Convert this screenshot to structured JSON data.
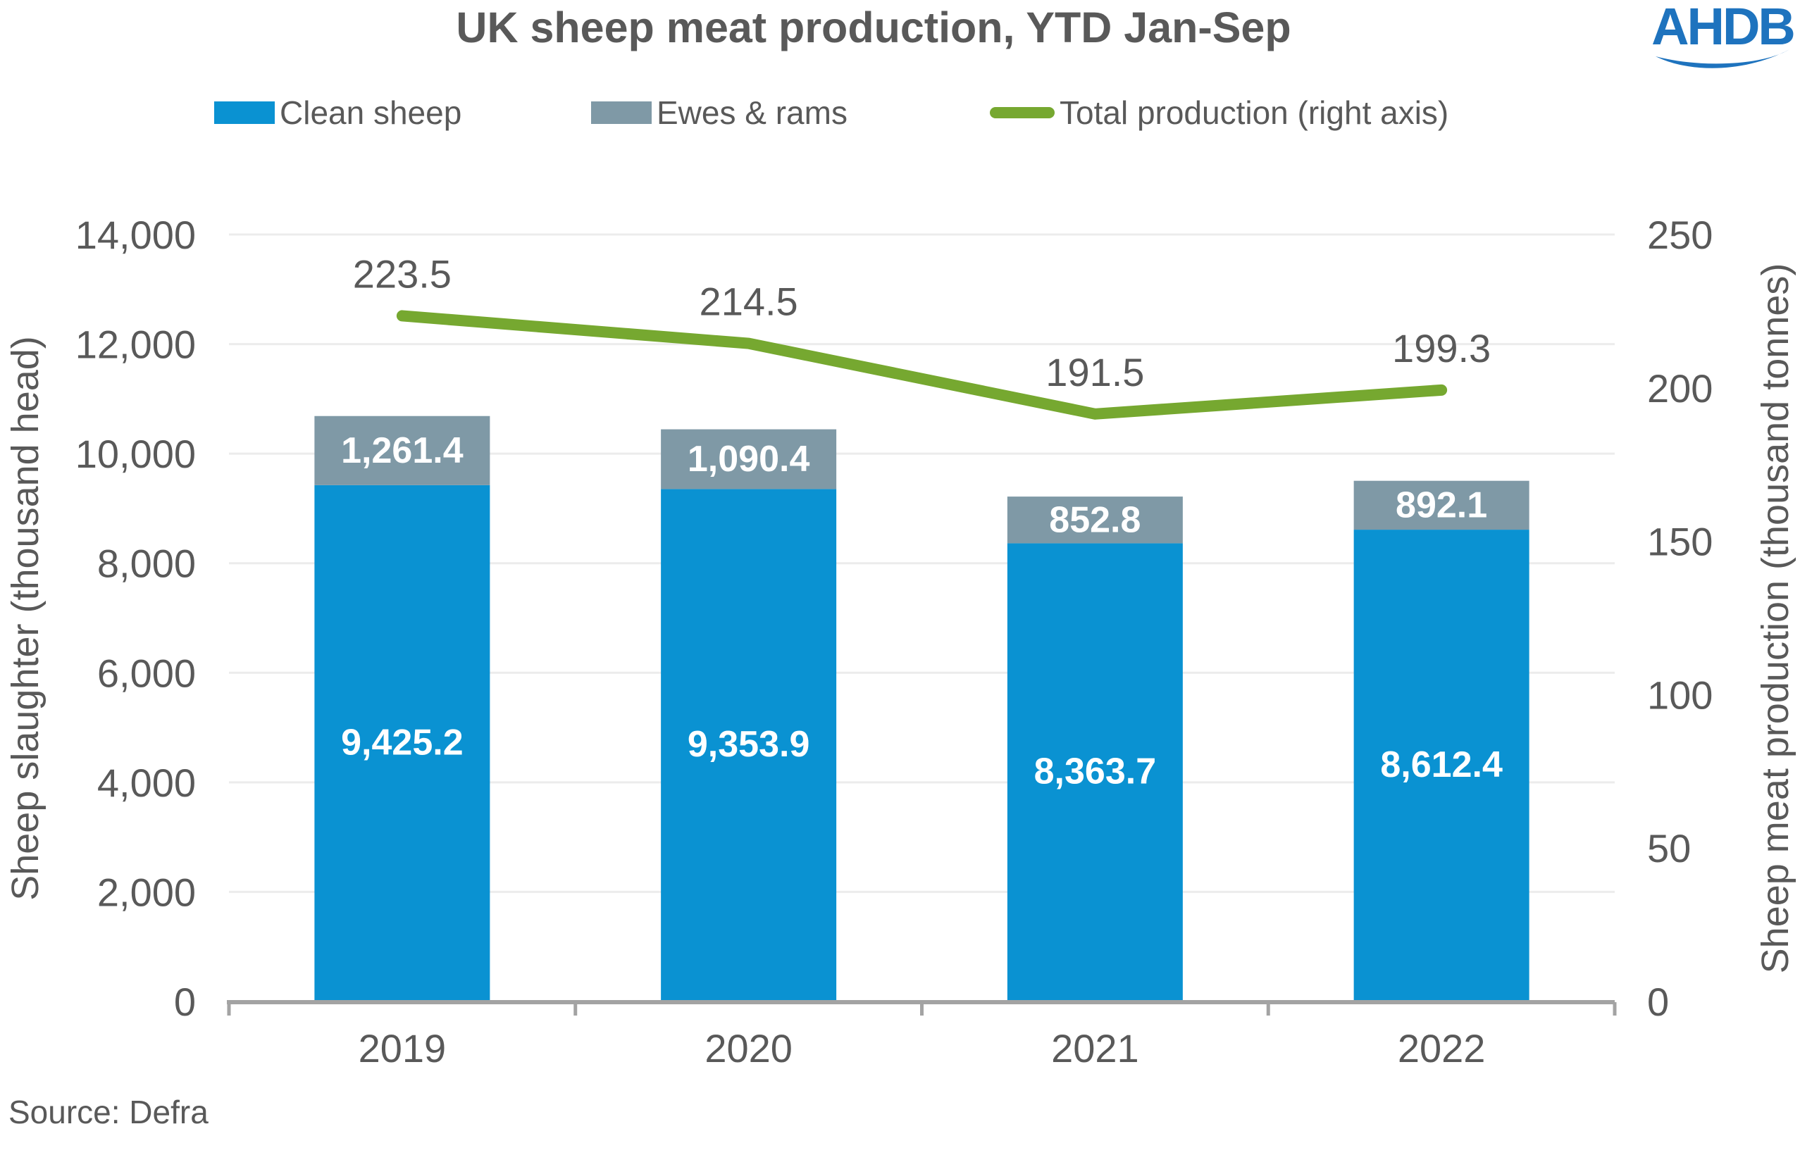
{
  "header": {
    "logo_text": "AHDB",
    "logo_color": "#1e73be"
  },
  "footer": {
    "source": "Source: Defra"
  },
  "chart_data": {
    "type": "bar",
    "subtype": "stacked-column-with-line",
    "title": "UK sheep meat production, YTD Jan-Sep",
    "categories": [
      "2019",
      "2020",
      "2021",
      "2022"
    ],
    "series": [
      {
        "name": "Clean sheep",
        "kind": "bar",
        "axis": "left",
        "color": "#0a92d2",
        "values": [
          9425.2,
          9353.9,
          8363.7,
          8612.4
        ],
        "labels": [
          "9,425.2",
          "9,353.9",
          "8,363.7",
          "8,612.4"
        ],
        "label_color": "#ffffff"
      },
      {
        "name": "Ewes & rams",
        "kind": "bar",
        "axis": "left",
        "color": "#7f99a6",
        "values": [
          1261.4,
          1090.4,
          852.8,
          892.1
        ],
        "labels": [
          "1,261.4",
          "1,090.4",
          "852.8",
          "892.1"
        ],
        "label_color": "#ffffff"
      },
      {
        "name": "Total production (right axis)",
        "kind": "line",
        "axis": "right",
        "color": "#76a830",
        "values": [
          223.5,
          214.5,
          191.5,
          199.3
        ],
        "labels": [
          "223.5",
          "214.5",
          "191.5",
          "199.3"
        ],
        "label_color": "#595959"
      }
    ],
    "left_axis": {
      "label": "Sheep slaughter (thousand head)",
      "min": 0,
      "max": 14000,
      "step": 2000,
      "tick_labels": [
        "0",
        "2,000",
        "4,000",
        "6,000",
        "8,000",
        "10,000",
        "12,000",
        "14,000"
      ]
    },
    "right_axis": {
      "label": "Sheep meat production (thousand tonnes)",
      "min": 0,
      "max": 250,
      "step": 50,
      "tick_labels": [
        "0",
        "50",
        "100",
        "150",
        "200",
        "250"
      ]
    },
    "grid": true,
    "legend_position": "top",
    "text_color": "#595959",
    "gridline_color": "#ececec",
    "axis_line_color": "#a3a3a3"
  }
}
